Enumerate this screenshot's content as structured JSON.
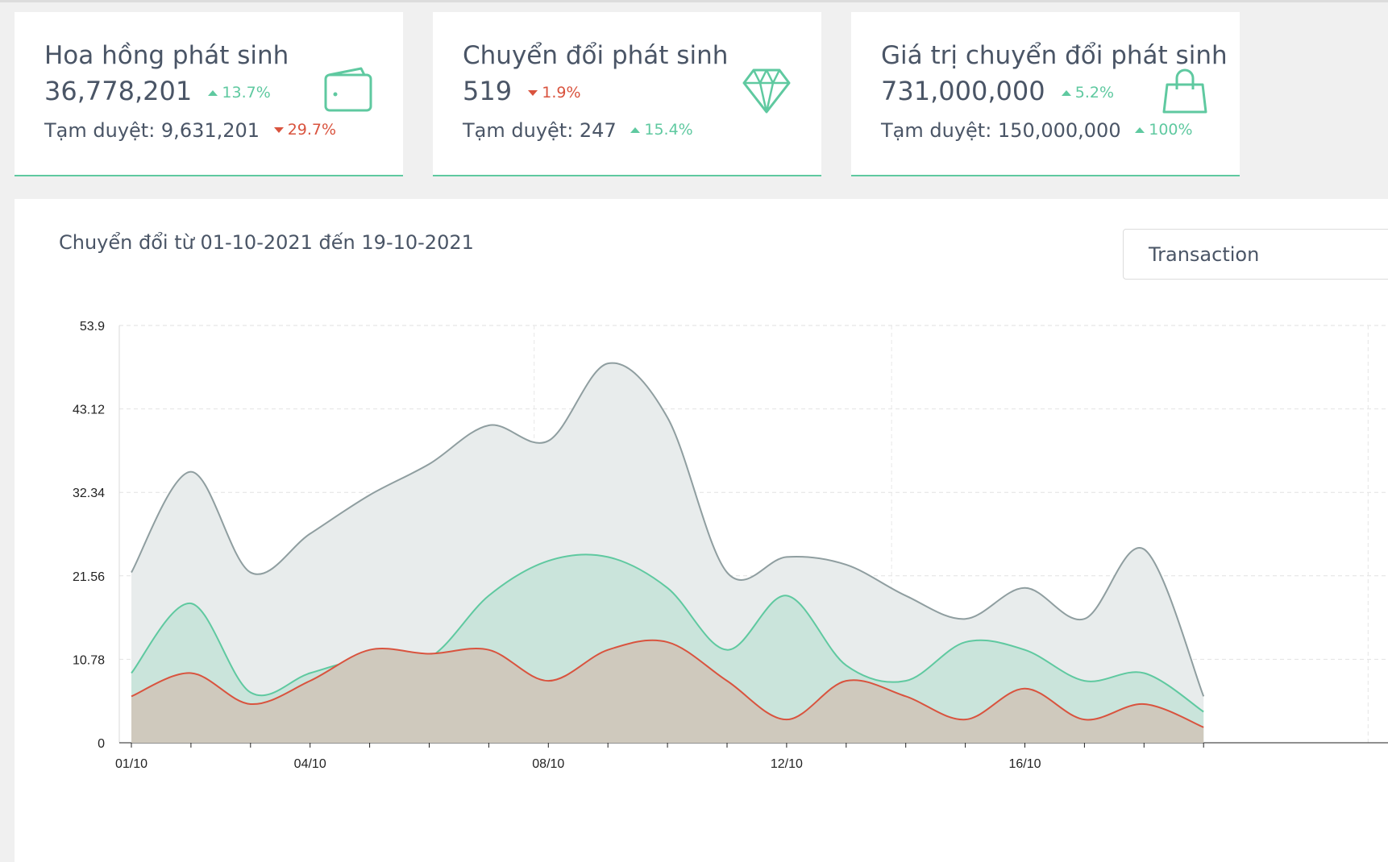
{
  "cards": [
    {
      "title": "Hoa hồng phát sinh",
      "value": "36,778,201",
      "change": "13.7%",
      "change_dir": "up",
      "sub_label": "Tạm duyệt: 9,631,201",
      "sub_change": "29.7%",
      "sub_dir": "down",
      "icon": "wallet-icon"
    },
    {
      "title": "Chuyển đổi phát sinh",
      "value": "519",
      "change": "1.9%",
      "change_dir": "down",
      "sub_label": "Tạm duyệt: 247",
      "sub_change": "15.4%",
      "sub_dir": "up",
      "icon": "diamond-icon"
    },
    {
      "title": "Giá trị chuyển đổi phát sinh",
      "value": "731,000,000",
      "change": "5.2%",
      "change_dir": "up",
      "sub_label": "Tạm duyệt: 150,000,000",
      "sub_change": "100%",
      "sub_dir": "up",
      "icon": "shopping-bag-icon"
    }
  ],
  "panel": {
    "title": "Chuyển đổi từ 01-10-2021 đến 19-10-2021",
    "button_label": "Transaction"
  },
  "colors": {
    "accent": "#5fc9a0",
    "negative": "#d9533e",
    "series_total": "#8f9ea0",
    "series_green": "#5fc9a0",
    "series_red": "#d9533e"
  },
  "chart_data": {
    "type": "area",
    "x": [
      "01/10",
      "02/10",
      "03/10",
      "04/10",
      "05/10",
      "06/10",
      "07/10",
      "08/10",
      "09/10",
      "10/10",
      "11/10",
      "12/10",
      "13/10",
      "14/10",
      "15/10",
      "16/10",
      "17/10",
      "18/10",
      "19/10"
    ],
    "x_tick_labels": [
      "01/10",
      "04/10",
      "08/10",
      "12/10",
      "16/10"
    ],
    "ylim": [
      0,
      53.9
    ],
    "y_ticks": [
      "0",
      "10.78",
      "21.56",
      "32.34",
      "43.12",
      "53.9"
    ],
    "grid": true,
    "series": [
      {
        "values": [
          22,
          35,
          22,
          27,
          32,
          36,
          41,
          39,
          49,
          42,
          22,
          24,
          23,
          19,
          16,
          20,
          16,
          25,
          6
        ]
      },
      {
        "values": [
          9,
          18,
          6.5,
          9,
          11,
          11,
          19,
          23.5,
          24,
          20,
          12,
          19,
          10,
          8,
          13,
          12,
          8,
          9,
          4
        ]
      },
      {
        "values": [
          6,
          9,
          5,
          8,
          12,
          11.5,
          12,
          8,
          12,
          13,
          8,
          3,
          8,
          6,
          3,
          7,
          3,
          5,
          2
        ]
      }
    ]
  }
}
